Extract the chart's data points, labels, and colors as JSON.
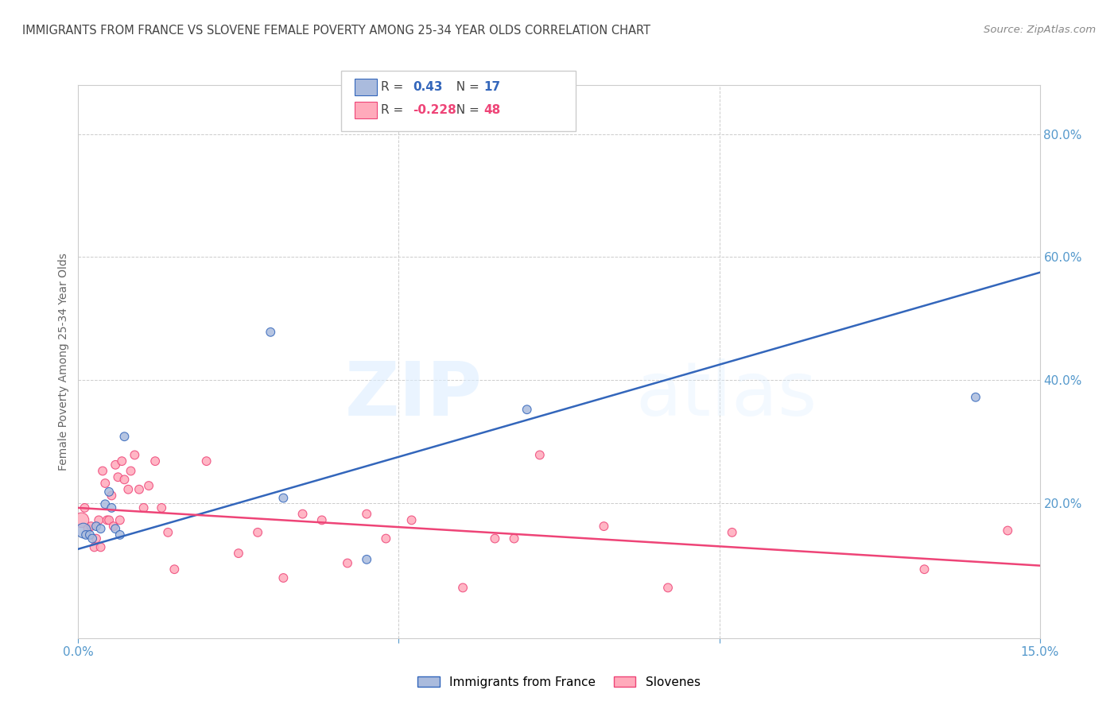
{
  "title": "IMMIGRANTS FROM FRANCE VS SLOVENE FEMALE POVERTY AMONG 25-34 YEAR OLDS CORRELATION CHART",
  "source": "Source: ZipAtlas.com",
  "ylabel_label": "Female Poverty Among 25-34 Year Olds",
  "xlim": [
    0.0,
    0.15
  ],
  "ylim": [
    -0.02,
    0.88
  ],
  "ytick_labels": [
    "20.0%",
    "40.0%",
    "60.0%",
    "80.0%"
  ],
  "ytick_positions": [
    0.2,
    0.4,
    0.6,
    0.8
  ],
  "xtick_positions": [
    0.0,
    0.05,
    0.1,
    0.15
  ],
  "blue_r": 0.43,
  "blue_n": 17,
  "pink_r": -0.228,
  "pink_n": 48,
  "blue_color": "#aabbdd",
  "pink_color": "#ffaabb",
  "blue_line_color": "#3366bb",
  "pink_line_color": "#ee4477",
  "blue_points_x": [
    0.0008,
    0.0012,
    0.0018,
    0.0022,
    0.0028,
    0.0035,
    0.0042,
    0.0048,
    0.0052,
    0.0058,
    0.0065,
    0.0072,
    0.03,
    0.032,
    0.045,
    0.07,
    0.14
  ],
  "blue_points_y": [
    0.155,
    0.148,
    0.148,
    0.142,
    0.162,
    0.158,
    0.198,
    0.218,
    0.192,
    0.158,
    0.148,
    0.308,
    0.478,
    0.208,
    0.108,
    0.352,
    0.372
  ],
  "pink_points_x": [
    0.0005,
    0.001,
    0.0015,
    0.002,
    0.0025,
    0.0028,
    0.0032,
    0.0035,
    0.0038,
    0.0042,
    0.0045,
    0.0048,
    0.0052,
    0.0055,
    0.0058,
    0.0062,
    0.0065,
    0.0068,
    0.0072,
    0.0078,
    0.0082,
    0.0088,
    0.0095,
    0.0102,
    0.011,
    0.012,
    0.013,
    0.014,
    0.015,
    0.02,
    0.025,
    0.028,
    0.032,
    0.035,
    0.038,
    0.042,
    0.045,
    0.048,
    0.052,
    0.06,
    0.065,
    0.068,
    0.072,
    0.082,
    0.092,
    0.102,
    0.132,
    0.145
  ],
  "pink_points_y": [
    0.172,
    0.192,
    0.158,
    0.162,
    0.128,
    0.142,
    0.172,
    0.128,
    0.252,
    0.232,
    0.172,
    0.172,
    0.212,
    0.162,
    0.262,
    0.242,
    0.172,
    0.268,
    0.238,
    0.222,
    0.252,
    0.278,
    0.222,
    0.192,
    0.228,
    0.268,
    0.192,
    0.152,
    0.092,
    0.268,
    0.118,
    0.152,
    0.078,
    0.182,
    0.172,
    0.102,
    0.182,
    0.142,
    0.172,
    0.062,
    0.142,
    0.142,
    0.278,
    0.162,
    0.062,
    0.152,
    0.092,
    0.155
  ],
  "point_size": 60,
  "first_blue_size": 180,
  "first_pink_size": 180,
  "blue_trend_x": [
    0.0,
    0.15
  ],
  "blue_trend_y": [
    0.125,
    0.575
  ],
  "pink_trend_x": [
    0.0,
    0.15
  ],
  "pink_trend_y": [
    0.192,
    0.098
  ],
  "watermark_zip": "ZIP",
  "watermark_atlas": "atlas",
  "background_color": "#ffffff",
  "grid_color": "#cccccc",
  "label_color": "#5599cc",
  "title_color": "#444444",
  "source_color": "#888888"
}
